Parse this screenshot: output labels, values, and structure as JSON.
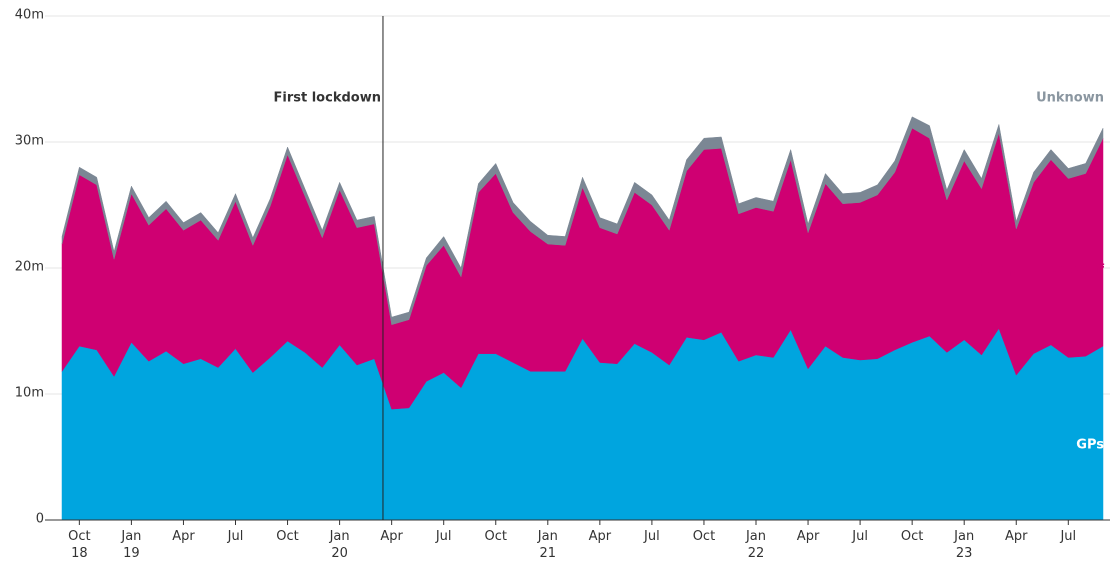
{
  "chart_data": {
    "type": "stacked_area",
    "categories": [
      null,
      "Oct\n18",
      null,
      null,
      "Jan\n19",
      null,
      null,
      "Apr",
      null,
      null,
      "Jul",
      null,
      null,
      "Oct",
      null,
      null,
      "Jan\n20",
      null,
      null,
      "Apr",
      null,
      null,
      "Jul",
      null,
      null,
      "Oct",
      null,
      null,
      "Jan\n21",
      null,
      null,
      "Apr",
      null,
      null,
      "Jul",
      null,
      null,
      "Oct",
      null,
      null,
      "Jan\n22",
      null,
      null,
      "Apr",
      null,
      null,
      "Jul",
      null,
      null,
      "Oct",
      null,
      null,
      "Jan\n23",
      null,
      null,
      "Apr",
      null,
      null,
      "Jul",
      null,
      null
    ],
    "series": [
      {
        "name": "GPs",
        "color": "#00a5df",
        "values": [
          11.8,
          13.8,
          13.5,
          11.4,
          14.1,
          12.6,
          13.4,
          12.4,
          12.8,
          12.1,
          13.6,
          11.7,
          12.9,
          14.2,
          13.3,
          12.1,
          13.9,
          12.3,
          12.8,
          8.8,
          8.9,
          11.0,
          11.7,
          10.5,
          13.2,
          13.2,
          12.5,
          11.8,
          11.8,
          11.8,
          14.4,
          12.5,
          12.4,
          14.0,
          13.3,
          12.3,
          14.5,
          14.3,
          14.9,
          12.6,
          13.1,
          12.9,
          15.1,
          12.0,
          13.8,
          12.9,
          12.7,
          12.8,
          13.5,
          14.1,
          14.6,
          13.3,
          14.3,
          13.1,
          15.2,
          11.5,
          13.2,
          13.9,
          12.9,
          13.0,
          13.8
        ]
      },
      {
        "name": "Other practice staff",
        "color": "#cf0072",
        "values": [
          10.1,
          13.6,
          13.1,
          9.3,
          11.8,
          10.8,
          11.3,
          10.6,
          11.0,
          10.1,
          11.7,
          10.1,
          12.0,
          14.8,
          12.4,
          10.3,
          12.3,
          10.9,
          10.7,
          6.7,
          7.0,
          9.2,
          10.1,
          8.8,
          12.8,
          14.3,
          11.9,
          11.1,
          10.1,
          10.0,
          12.0,
          10.7,
          10.3,
          12.0,
          11.7,
          10.7,
          13.2,
          15.1,
          14.6,
          11.7,
          11.7,
          11.6,
          13.5,
          10.8,
          12.9,
          12.2,
          12.5,
          13.0,
          14.1,
          17.0,
          15.7,
          12.1,
          14.2,
          13.2,
          15.5,
          11.6,
          13.6,
          14.7,
          14.2,
          14.5,
          16.5
        ]
      },
      {
        "name": "Unknown",
        "color": "#7b8794",
        "values": [
          0.6,
          0.6,
          0.6,
          0.6,
          0.6,
          0.6,
          0.6,
          0.6,
          0.6,
          0.6,
          0.6,
          0.6,
          0.6,
          0.6,
          0.6,
          0.6,
          0.6,
          0.6,
          0.6,
          0.6,
          0.6,
          0.6,
          0.7,
          0.7,
          0.7,
          0.8,
          0.8,
          0.8,
          0.7,
          0.7,
          0.8,
          0.8,
          0.8,
          0.8,
          0.8,
          0.8,
          0.9,
          0.9,
          0.9,
          0.8,
          0.8,
          0.8,
          0.8,
          0.7,
          0.8,
          0.8,
          0.8,
          0.8,
          0.9,
          0.9,
          1.0,
          0.8,
          0.9,
          0.8,
          0.7,
          0.6,
          0.8,
          0.8,
          0.8,
          0.8,
          0.8
        ]
      }
    ],
    "ylim": [
      0,
      40
    ],
    "yticks": [
      {
        "value": 0,
        "label": "0"
      },
      {
        "value": 10,
        "label": "10m"
      },
      {
        "value": 20,
        "label": "20m"
      },
      {
        "value": 30,
        "label": "30m"
      },
      {
        "value": 40,
        "label": "40m"
      }
    ],
    "grid": true,
    "annotation": "First lockdown"
  }
}
